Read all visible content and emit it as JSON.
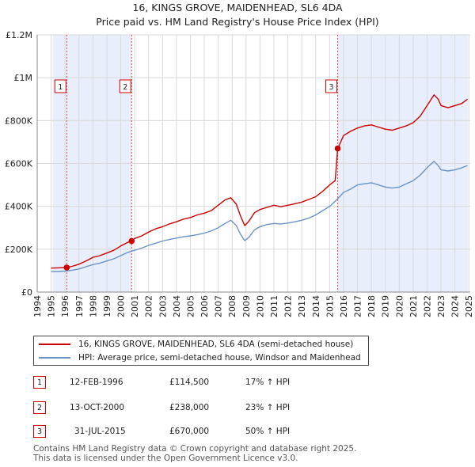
{
  "title": "16, KINGS GROVE, MAIDENHEAD, SL6 4DA",
  "subtitle": "Price paid vs. HM Land Registry's House Price Index (HPI)",
  "colors": {
    "property": "#cc0000",
    "hpi": "#6b93c8",
    "shade": "#e8eefb",
    "grid": "#d9d9d9",
    "marker_box": "#cc0000"
  },
  "chart_data": {
    "type": "line",
    "title": "16, KINGS GROVE, MAIDENHEAD, SL6 4DA",
    "subtitle": "Price paid vs. HM Land Registry's House Price Index (HPI)",
    "xlabel": "",
    "ylabel": "",
    "xlim": [
      1994,
      2025.1
    ],
    "ylim": [
      0,
      1200000
    ],
    "x_ticks": [
      1994,
      1995,
      1996,
      1997,
      1998,
      1999,
      2000,
      2001,
      2002,
      2003,
      2004,
      2005,
      2006,
      2007,
      2008,
      2009,
      2010,
      2011,
      2012,
      2013,
      2014,
      2015,
      2016,
      2017,
      2018,
      2019,
      2020,
      2021,
      2022,
      2023,
      2024,
      2025
    ],
    "y_ticks": [
      {
        "value": 0,
        "label": "£0"
      },
      {
        "value": 200000,
        "label": "£200K"
      },
      {
        "value": 400000,
        "label": "£400K"
      },
      {
        "value": 600000,
        "label": "£600K"
      },
      {
        "value": 800000,
        "label": "£800K"
      },
      {
        "value": 1000000,
        "label": "£1M"
      },
      {
        "value": 1200000,
        "label": "£1.2M"
      }
    ],
    "grid": true,
    "shaded_ranges": [
      [
        1995.12,
        2000.78
      ],
      [
        2015.58,
        2024.92
      ]
    ],
    "series": [
      {
        "name": "16, KINGS GROVE, MAIDENHEAD, SL6 4DA (semi-detached house)",
        "color": "#cc0000",
        "x": [
          1995.0,
          1995.5,
          1996.12,
          1996.5,
          1997.0,
          1997.5,
          1998.0,
          1998.5,
          1999.0,
          1999.5,
          2000.0,
          2000.5,
          2000.78,
          2001.0,
          2001.5,
          2002.0,
          2002.5,
          2003.0,
          2003.5,
          2004.0,
          2004.5,
          2005.0,
          2005.5,
          2006.0,
          2006.5,
          2007.0,
          2007.5,
          2007.9,
          2008.3,
          2008.6,
          2008.9,
          2009.2,
          2009.6,
          2010.0,
          2010.5,
          2011.0,
          2011.5,
          2012.0,
          2012.5,
          2013.0,
          2013.5,
          2014.0,
          2014.5,
          2015.0,
          2015.4,
          2015.58,
          2015.8,
          2016.0,
          2016.5,
          2017.0,
          2017.5,
          2018.0,
          2018.5,
          2019.0,
          2019.5,
          2020.0,
          2020.5,
          2021.0,
          2021.5,
          2022.0,
          2022.5,
          2022.8,
          2023.0,
          2023.5,
          2024.0,
          2024.5,
          2024.9
        ],
        "y": [
          112000,
          113000,
          114500,
          120000,
          130000,
          145000,
          162000,
          170000,
          182000,
          195000,
          215000,
          232000,
          238000,
          250000,
          262000,
          280000,
          295000,
          305000,
          318000,
          328000,
          340000,
          348000,
          360000,
          368000,
          380000,
          405000,
          430000,
          440000,
          410000,
          355000,
          310000,
          330000,
          370000,
          385000,
          395000,
          405000,
          398000,
          405000,
          412000,
          420000,
          432000,
          445000,
          470000,
          500000,
          520000,
          670000,
          700000,
          730000,
          750000,
          765000,
          775000,
          780000,
          770000,
          760000,
          755000,
          765000,
          775000,
          790000,
          820000,
          870000,
          920000,
          900000,
          870000,
          860000,
          870000,
          880000,
          900000
        ]
      },
      {
        "name": "HPI: Average price, semi-detached house, Windsor and Maidenhead",
        "color": "#6b93c8",
        "x": [
          1995.0,
          1995.5,
          1996.0,
          1996.5,
          1997.0,
          1997.5,
          1998.0,
          1998.5,
          1999.0,
          1999.5,
          2000.0,
          2000.5,
          2001.0,
          2001.5,
          2002.0,
          2002.5,
          2003.0,
          2003.5,
          2004.0,
          2004.5,
          2005.0,
          2005.5,
          2006.0,
          2006.5,
          2007.0,
          2007.5,
          2007.9,
          2008.3,
          2008.6,
          2008.9,
          2009.2,
          2009.6,
          2010.0,
          2010.5,
          2011.0,
          2011.5,
          2012.0,
          2012.5,
          2013.0,
          2013.5,
          2014.0,
          2014.5,
          2015.0,
          2015.5,
          2016.0,
          2016.5,
          2017.0,
          2017.5,
          2018.0,
          2018.5,
          2019.0,
          2019.5,
          2020.0,
          2020.5,
          2021.0,
          2021.5,
          2022.0,
          2022.5,
          2022.8,
          2023.0,
          2023.5,
          2024.0,
          2024.5,
          2024.9
        ],
        "y": [
          95000,
          96000,
          98000,
          102000,
          108000,
          118000,
          128000,
          135000,
          145000,
          155000,
          170000,
          185000,
          195000,
          205000,
          218000,
          228000,
          238000,
          245000,
          252000,
          258000,
          262000,
          268000,
          275000,
          285000,
          300000,
          320000,
          335000,
          310000,
          270000,
          240000,
          255000,
          290000,
          305000,
          315000,
          320000,
          318000,
          322000,
          328000,
          335000,
          345000,
          360000,
          380000,
          400000,
          430000,
          465000,
          480000,
          500000,
          505000,
          510000,
          500000,
          490000,
          485000,
          490000,
          505000,
          520000,
          545000,
          580000,
          610000,
          590000,
          570000,
          565000,
          570000,
          580000,
          590000
        ]
      }
    ],
    "sales": [
      {
        "id": "1",
        "x": 1996.12,
        "y": 114500,
        "date": "12-FEB-1996",
        "price": "£114,500",
        "hpi": "17% ↑ HPI"
      },
      {
        "id": "2",
        "x": 2000.78,
        "y": 238000,
        "date": "13-OCT-2000",
        "price": "£238,000",
        "hpi": "23% ↑ HPI"
      },
      {
        "id": "3",
        "x": 2015.58,
        "y": 670000,
        "date": "31-JUL-2015",
        "price": "£670,000",
        "hpi": "50% ↑ HPI"
      }
    ],
    "legend": "bottom"
  },
  "legend": {
    "property": "16, KINGS GROVE, MAIDENHEAD, SL6 4DA (semi-detached house)",
    "hpi": "HPI: Average price, semi-detached house, Windsor and Maidenhead"
  },
  "transactions": [
    {
      "num": "1",
      "date": "12-FEB-1996",
      "price": "£114,500",
      "hpi": "17% ↑ HPI"
    },
    {
      "num": "2",
      "date": "13-OCT-2000",
      "price": "£238,000",
      "hpi": "23% ↑ HPI"
    },
    {
      "num": "3",
      "date": "31-JUL-2015",
      "price": "£670,000",
      "hpi": "50% ↑ HPI"
    }
  ],
  "footer": {
    "line1": "Contains HM Land Registry data © Crown copyright and database right 2025.",
    "line2": "This data is licensed under the Open Government Licence v3.0."
  }
}
